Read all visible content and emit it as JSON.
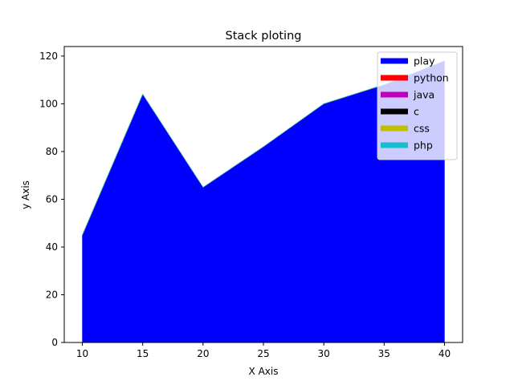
{
  "chart_data": {
    "type": "area",
    "title": "Stack ploting",
    "xlabel": "X Axis",
    "ylabel": "y Axis",
    "x": [
      10,
      15,
      20,
      25,
      30,
      35,
      40
    ],
    "xlim": [
      8.5,
      41.5
    ],
    "ylim": [
      0,
      124
    ],
    "xticks": [
      10,
      15,
      20,
      25,
      30,
      35,
      40
    ],
    "yticks": [
      0,
      20,
      40,
      60,
      80,
      100,
      120
    ],
    "grid": false,
    "legend_position": "top-right",
    "series": [
      {
        "name": "play",
        "color": "#0000ff",
        "values": [
          45,
          104,
          65,
          82,
          100,
          108,
          118
        ]
      },
      {
        "name": "python",
        "color": "#ff0000",
        "values": [
          0,
          0,
          0,
          0,
          0,
          0,
          0
        ]
      },
      {
        "name": "java",
        "color": "#bf00bf",
        "values": [
          0,
          0,
          0,
          0,
          0,
          0,
          0
        ]
      },
      {
        "name": "c",
        "color": "#000000",
        "values": [
          0,
          0,
          0,
          0,
          0,
          0,
          0
        ]
      },
      {
        "name": "css",
        "color": "#bfbf00",
        "values": [
          0,
          0,
          0,
          0,
          0,
          0,
          0
        ]
      },
      {
        "name": "php",
        "color": "#17becf",
        "values": [
          0,
          0,
          0,
          0,
          0,
          0,
          0
        ]
      }
    ]
  }
}
